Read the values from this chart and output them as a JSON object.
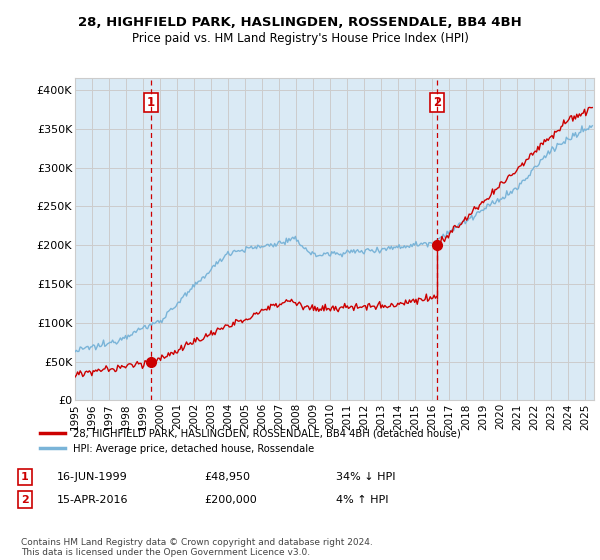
{
  "title_line1": "28, HIGHFIELD PARK, HASLINGDEN, ROSSENDALE, BB4 4BH",
  "title_line2": "Price paid vs. HM Land Registry's House Price Index (HPI)",
  "ylabel_ticks": [
    "£0",
    "£50K",
    "£100K",
    "£150K",
    "£200K",
    "£250K",
    "£300K",
    "£350K",
    "£400K"
  ],
  "ylabel_values": [
    0,
    50000,
    100000,
    150000,
    200000,
    250000,
    300000,
    350000,
    400000
  ],
  "ylim": [
    0,
    415000
  ],
  "xlim_start": 1995.0,
  "xlim_end": 2025.5,
  "transaction1_date": 1999.46,
  "transaction1_price": 48950,
  "transaction2_date": 2016.29,
  "transaction2_price": 200000,
  "hpi_color": "#7ab4d8",
  "hpi_fill_color": "#daeaf5",
  "price_color": "#cc0000",
  "vline_color": "#cc0000",
  "grid_color": "#cccccc",
  "plot_bg_color": "#daeaf5",
  "background_color": "#ffffff",
  "legend_label1": "28, HIGHFIELD PARK, HASLINGDEN, ROSSENDALE, BB4 4BH (detached house)",
  "legend_label2": "HPI: Average price, detached house, Rossendale",
  "annotation1_num": "1",
  "annotation1_date": "16-JUN-1999",
  "annotation1_price": "£48,950",
  "annotation1_hpi": "34% ↓ HPI",
  "annotation2_num": "2",
  "annotation2_date": "15-APR-2016",
  "annotation2_price": "£200,000",
  "annotation2_hpi": "4% ↑ HPI",
  "footer": "Contains HM Land Registry data © Crown copyright and database right 2024.\nThis data is licensed under the Open Government Licence v3.0.",
  "xtick_years": [
    1995,
    1996,
    1997,
    1998,
    1999,
    2000,
    2001,
    2002,
    2003,
    2004,
    2005,
    2006,
    2007,
    2008,
    2009,
    2010,
    2011,
    2012,
    2013,
    2014,
    2015,
    2016,
    2017,
    2018,
    2019,
    2020,
    2021,
    2022,
    2023,
    2024,
    2025
  ]
}
